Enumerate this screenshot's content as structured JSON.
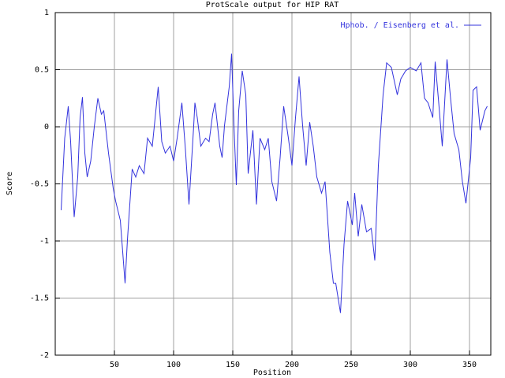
{
  "chart_data": {
    "type": "line",
    "title": "ProtScale output for HIP RAT",
    "x_label": "Position",
    "y_label": "Score",
    "xlim": [
      0,
      368
    ],
    "ylim": [
      -2,
      1
    ],
    "xticks": [
      50,
      100,
      150,
      200,
      250,
      300,
      350
    ],
    "yticks": [
      -2,
      -1.5,
      -1,
      -0.5,
      0,
      0.5,
      1
    ],
    "grid": true,
    "legend": "top-right",
    "x": [
      5,
      8,
      11,
      13,
      16,
      19,
      21,
      23,
      25,
      27,
      30,
      33,
      36,
      39,
      41,
      45,
      49,
      51,
      55,
      59,
      61,
      65,
      68,
      71,
      75,
      78,
      82,
      85,
      87,
      90,
      93,
      97,
      100,
      103,
      107,
      110,
      113,
      117,
      118,
      120,
      123,
      127,
      130,
      133,
      135,
      139,
      141,
      143,
      147,
      149,
      151,
      153,
      155,
      158,
      161,
      163,
      167,
      170,
      173,
      177,
      180,
      183,
      187,
      190,
      193,
      197,
      200,
      203,
      206,
      209,
      212,
      215,
      218,
      221,
      225,
      228,
      232,
      235,
      237,
      241,
      244,
      247,
      251,
      253,
      256,
      259,
      263,
      267,
      270,
      273,
      277,
      280,
      284,
      289,
      292,
      296,
      300,
      305,
      309,
      312,
      315,
      319,
      321,
      324,
      327,
      331,
      334,
      337,
      341,
      344,
      347,
      351,
      353,
      356,
      359,
      363,
      365
    ],
    "series": [
      {
        "name": "Hphob. / Eisenberg et al.",
        "color": "#3333dd",
        "values": [
          -0.73,
          -0.1,
          0.18,
          -0.13,
          -0.79,
          -0.44,
          0.08,
          0.26,
          -0.23,
          -0.44,
          -0.3,
          0.0,
          0.25,
          0.11,
          0.14,
          -0.23,
          -0.54,
          -0.65,
          -0.82,
          -1.37,
          -0.99,
          -0.37,
          -0.44,
          -0.34,
          -0.41,
          -0.1,
          -0.17,
          0.14,
          0.35,
          -0.13,
          -0.23,
          -0.17,
          -0.3,
          -0.1,
          0.21,
          -0.2,
          -0.68,
          0.01,
          0.21,
          0.08,
          -0.17,
          -0.1,
          -0.13,
          0.11,
          0.21,
          -0.17,
          -0.27,
          0.01,
          0.35,
          0.64,
          0.01,
          -0.51,
          0.14,
          0.49,
          0.28,
          -0.41,
          -0.03,
          -0.68,
          -0.1,
          -0.2,
          -0.1,
          -0.48,
          -0.65,
          -0.27,
          0.18,
          -0.1,
          -0.34,
          0.08,
          0.44,
          0.01,
          -0.34,
          0.04,
          -0.17,
          -0.44,
          -0.58,
          -0.48,
          -1.1,
          -1.37,
          -1.37,
          -1.63,
          -1.03,
          -0.65,
          -0.86,
          -0.58,
          -0.96,
          -0.68,
          -0.92,
          -0.89,
          -1.17,
          -0.34,
          0.28,
          0.56,
          0.52,
          0.28,
          0.42,
          0.49,
          0.52,
          0.49,
          0.56,
          0.25,
          0.21,
          0.08,
          0.57,
          0.21,
          -0.17,
          0.59,
          0.25,
          -0.06,
          -0.2,
          -0.48,
          -0.67,
          -0.27,
          0.32,
          0.35,
          -0.03,
          0.14,
          0.18
        ]
      }
    ]
  }
}
